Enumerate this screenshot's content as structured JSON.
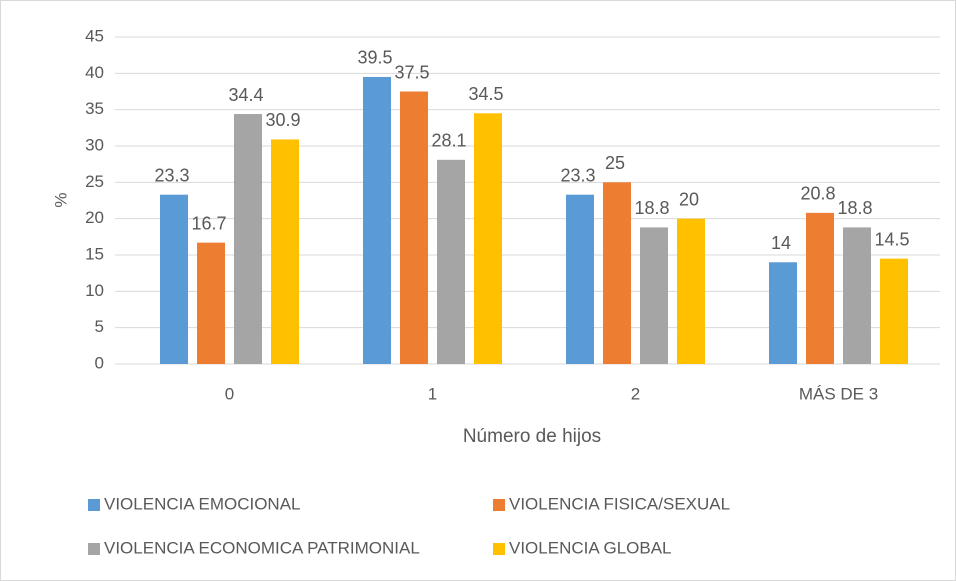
{
  "chart_data": {
    "type": "bar",
    "categories": [
      "0",
      "1",
      "2",
      "MÁS DE 3"
    ],
    "series": [
      {
        "name": "VIOLENCIA EMOCIONAL",
        "color": "#5b9bd5",
        "values": [
          23.3,
          39.5,
          23.3,
          14
        ]
      },
      {
        "name": "VIOLENCIA FISICA/SEXUAL",
        "color": "#ed7d31",
        "values": [
          16.7,
          37.5,
          25,
          20.8
        ]
      },
      {
        "name": "VIOLENCIA ECONOMICA PATRIMONIAL",
        "color": "#a5a5a5",
        "values": [
          34.4,
          28.1,
          18.8,
          18.8
        ]
      },
      {
        "name": "VIOLENCIA GLOBAL",
        "color": "#ffc000",
        "values": [
          30.9,
          34.5,
          20,
          14.5
        ]
      }
    ],
    "x_label": "Número de hijos",
    "y_label": "%",
    "ylim": [
      0,
      45
    ],
    "yticks": [
      0,
      5,
      10,
      15,
      20,
      25,
      30,
      35,
      40,
      45
    ],
    "grid": true,
    "legend": "bottom"
  }
}
